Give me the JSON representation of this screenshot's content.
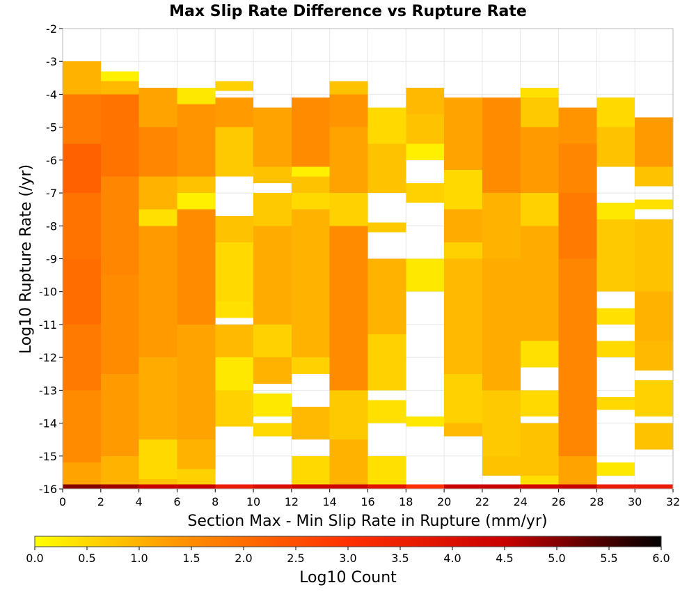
{
  "chart_data": {
    "type": "heatmap",
    "title": "Max Slip Rate Difference vs Rupture Rate",
    "xlabel": "Section Max - Min Slip Rate in Rupture (mm/yr)",
    "ylabel": "Log10 Rupture Rate (/yr)",
    "xlim": [
      0,
      32
    ],
    "ylim": [
      -16,
      -2
    ],
    "x_ticks": [
      "0",
      "2",
      "4",
      "6",
      "8",
      "10",
      "12",
      "14",
      "16",
      "18",
      "20",
      "22",
      "24",
      "26",
      "28",
      "30",
      "32"
    ],
    "y_ticks": [
      "-2",
      "-3",
      "-4",
      "-5",
      "-6",
      "-7",
      "-8",
      "-9",
      "-10",
      "-11",
      "-12",
      "-13",
      "-14",
      "-15",
      "-16"
    ],
    "x_bin_width": 2,
    "y_bin_height": 0.28,
    "grid": true,
    "colorbar": {
      "label": "Log10 Count",
      "min": 0.0,
      "max": 6.0,
      "ticks": [
        "0.0",
        "0.5",
        "1.0",
        "1.5",
        "2.0",
        "2.5",
        "3.0",
        "3.5",
        "4.0",
        "4.5",
        "5.0",
        "5.5",
        "6.0"
      ],
      "colors": [
        "#ffff00",
        "#ff8c00",
        "#ff3000",
        "#c80000",
        "#000000"
      ]
    },
    "columns": [
      {
        "x": 1,
        "bottom_value": 5.0,
        "segments": [
          [
            -16,
            -15.2,
            1.2
          ],
          [
            -15.2,
            -13.0,
            1.5
          ],
          [
            -13.0,
            -11.0,
            1.8
          ],
          [
            -11.0,
            -9.0,
            2.0
          ],
          [
            -9.0,
            -7.0,
            1.9
          ],
          [
            -7.0,
            -5.5,
            2.2
          ],
          [
            -5.5,
            -4.0,
            1.8
          ],
          [
            -4.0,
            -3.0,
            1.0
          ]
        ]
      },
      {
        "x": 3,
        "bottom_value": 4.8,
        "segments": [
          [
            -16,
            -15.0,
            1.0
          ],
          [
            -15.0,
            -12.5,
            1.3
          ],
          [
            -12.5,
            -9.5,
            1.5
          ],
          [
            -9.5,
            -6.5,
            1.6
          ],
          [
            -6.5,
            -4.0,
            1.9
          ],
          [
            -4.0,
            -3.6,
            0.9
          ],
          [
            -3.6,
            -3.3,
            0.2
          ]
        ]
      },
      {
        "x": 5,
        "bottom_value": 4.5,
        "segments": [
          [
            -16,
            -15.7,
            0.8
          ],
          [
            -15.7,
            -14.5,
            0.5
          ],
          [
            -14.5,
            -12.0,
            1.1
          ],
          [
            -12.0,
            -8.0,
            1.3
          ],
          [
            -8.0,
            -7.5,
            0.4
          ],
          [
            -7.5,
            -6.5,
            1.0
          ],
          [
            -6.5,
            -5.0,
            1.6
          ],
          [
            -5.0,
            -3.8,
            1.2
          ]
        ]
      },
      {
        "x": 7,
        "bottom_value": 4.5,
        "segments": [
          [
            -16,
            -15.4,
            0.6
          ],
          [
            -15.4,
            -14.5,
            1.0
          ],
          [
            -14.5,
            -11.0,
            1.2
          ],
          [
            -11.0,
            -7.5,
            1.5
          ],
          [
            -7.5,
            -7.0,
            0.2
          ],
          [
            -7.0,
            -6.5,
            0.8
          ],
          [
            -6.5,
            -4.3,
            1.4
          ],
          [
            -4.3,
            -3.8,
            0.3
          ]
        ]
      },
      {
        "x": 9,
        "bottom_value": 3.6,
        "segments": [
          [
            -14.1,
            -13.0,
            0.6
          ],
          [
            -13.0,
            -12.0,
            0.3
          ],
          [
            -12.0,
            -11.0,
            0.9
          ],
          [
            -10.8,
            -10.3,
            0.4
          ],
          [
            -10.3,
            -8.5,
            0.5
          ],
          [
            -8.5,
            -7.7,
            0.8
          ],
          [
            -6.5,
            -5.0,
            0.7
          ],
          [
            -5.0,
            -4.1,
            1.3
          ],
          [
            -3.9,
            -3.6,
            0.6
          ]
        ]
      },
      {
        "x": 11,
        "bottom_value": 4.0,
        "segments": [
          [
            -14.4,
            -14.0,
            0.5
          ],
          [
            -13.8,
            -13.1,
            0.3
          ],
          [
            -12.8,
            -12.0,
            1.0
          ],
          [
            -12.0,
            -11.0,
            0.6
          ],
          [
            -11.0,
            -8.0,
            1.1
          ],
          [
            -8.0,
            -7.0,
            0.7
          ],
          [
            -6.7,
            -6.2,
            0.8
          ],
          [
            -6.2,
            -4.4,
            1.2
          ]
        ]
      },
      {
        "x": 13,
        "bottom_value": 4.3,
        "segments": [
          [
            -16,
            -15.0,
            0.5
          ],
          [
            -14.5,
            -13.5,
            0.9
          ],
          [
            -12.5,
            -12.0,
            0.6
          ],
          [
            -12.0,
            -7.5,
            1.0
          ],
          [
            -7.5,
            -7.0,
            0.5
          ],
          [
            -7.0,
            -6.5,
            0.8
          ],
          [
            -6.5,
            -6.2,
            0.2
          ],
          [
            -6.2,
            -4.1,
            1.5
          ]
        ]
      },
      {
        "x": 15,
        "bottom_value": 4.3,
        "segments": [
          [
            -16,
            -14.5,
            1.0
          ],
          [
            -14.5,
            -13.0,
            0.7
          ],
          [
            -13.0,
            -8.0,
            1.5
          ],
          [
            -8.0,
            -7.0,
            0.6
          ],
          [
            -7.0,
            -5.0,
            1.2
          ],
          [
            -5.0,
            -4.0,
            1.4
          ],
          [
            -4.0,
            -3.6,
            0.8
          ]
        ]
      },
      {
        "x": 17,
        "bottom_value": 3.8,
        "segments": [
          [
            -16,
            -15.0,
            0.4
          ],
          [
            -14.0,
            -13.3,
            0.4
          ],
          [
            -13.0,
            -11.3,
            0.6
          ],
          [
            -11.3,
            -9.0,
            1.0
          ],
          [
            -8.2,
            -7.9,
            0.7
          ],
          [
            -7.0,
            -5.5,
            0.8
          ],
          [
            -5.5,
            -4.4,
            0.5
          ]
        ]
      },
      {
        "x": 19,
        "bottom_value": 3.0,
        "segments": [
          [
            -14.1,
            -13.8,
            0.3
          ],
          [
            -10.0,
            -9.0,
            0.3
          ],
          [
            -7.3,
            -6.7,
            0.6
          ],
          [
            -6.0,
            -5.5,
            0.2
          ],
          [
            -5.5,
            -4.6,
            0.8
          ],
          [
            -4.6,
            -3.8,
            0.9
          ]
        ]
      },
      {
        "x": 21,
        "bottom_value": 4.5,
        "segments": [
          [
            -14.4,
            -14.0,
            0.9
          ],
          [
            -14.0,
            -12.5,
            0.6
          ],
          [
            -12.5,
            -9.0,
            0.9
          ],
          [
            -9.0,
            -8.5,
            0.6
          ],
          [
            -8.5,
            -7.5,
            1.1
          ],
          [
            -7.5,
            -6.3,
            0.5
          ],
          [
            -6.3,
            -4.1,
            1.2
          ]
        ]
      },
      {
        "x": 23,
        "bottom_value": 4.5,
        "segments": [
          [
            -15.6,
            -15.0,
            0.8
          ],
          [
            -15.0,
            -13.0,
            0.7
          ],
          [
            -13.0,
            -9.0,
            1.1
          ],
          [
            -9.0,
            -7.0,
            1.0
          ],
          [
            -7.0,
            -4.1,
            1.5
          ]
        ]
      },
      {
        "x": 25,
        "bottom_value": 4.3,
        "segments": [
          [
            -16,
            -15.6,
            0.4
          ],
          [
            -15.6,
            -14.0,
            0.8
          ],
          [
            -13.8,
            -13.0,
            0.5
          ],
          [
            -12.3,
            -11.5,
            0.4
          ],
          [
            -11.5,
            -8.0,
            1.1
          ],
          [
            -8.0,
            -7.0,
            0.6
          ],
          [
            -7.0,
            -5.0,
            1.3
          ],
          [
            -5.0,
            -4.1,
            0.7
          ],
          [
            -4.1,
            -3.8,
            0.4
          ]
        ]
      },
      {
        "x": 27,
        "bottom_value": 4.5,
        "segments": [
          [
            -16,
            -15.0,
            1.2
          ],
          [
            -15.0,
            -9.0,
            1.6
          ],
          [
            -9.0,
            -7.0,
            1.8
          ],
          [
            -7.0,
            -5.5,
            1.6
          ],
          [
            -5.5,
            -4.4,
            1.4
          ]
        ]
      },
      {
        "x": 29,
        "bottom_value": 3.6,
        "segments": [
          [
            -15.6,
            -15.2,
            0.3
          ],
          [
            -13.6,
            -13.2,
            0.5
          ],
          [
            -12.0,
            -11.5,
            0.5
          ],
          [
            -11.0,
            -10.5,
            0.4
          ],
          [
            -10.0,
            -7.8,
            0.7
          ],
          [
            -7.8,
            -7.3,
            0.3
          ],
          [
            -6.2,
            -5.0,
            0.8
          ],
          [
            -5.0,
            -4.1,
            0.5
          ]
        ]
      },
      {
        "x": 31,
        "bottom_value": 3.6,
        "segments": [
          [
            -14.8,
            -14.0,
            0.8
          ],
          [
            -13.8,
            -12.7,
            0.6
          ],
          [
            -12.4,
            -11.5,
            0.9
          ],
          [
            -11.5,
            -10.0,
            1.0
          ],
          [
            -10.0,
            -7.8,
            0.8
          ],
          [
            -7.5,
            -7.2,
            0.4
          ],
          [
            -6.8,
            -6.2,
            0.8
          ],
          [
            -6.2,
            -4.7,
            1.3
          ]
        ]
      }
    ]
  }
}
